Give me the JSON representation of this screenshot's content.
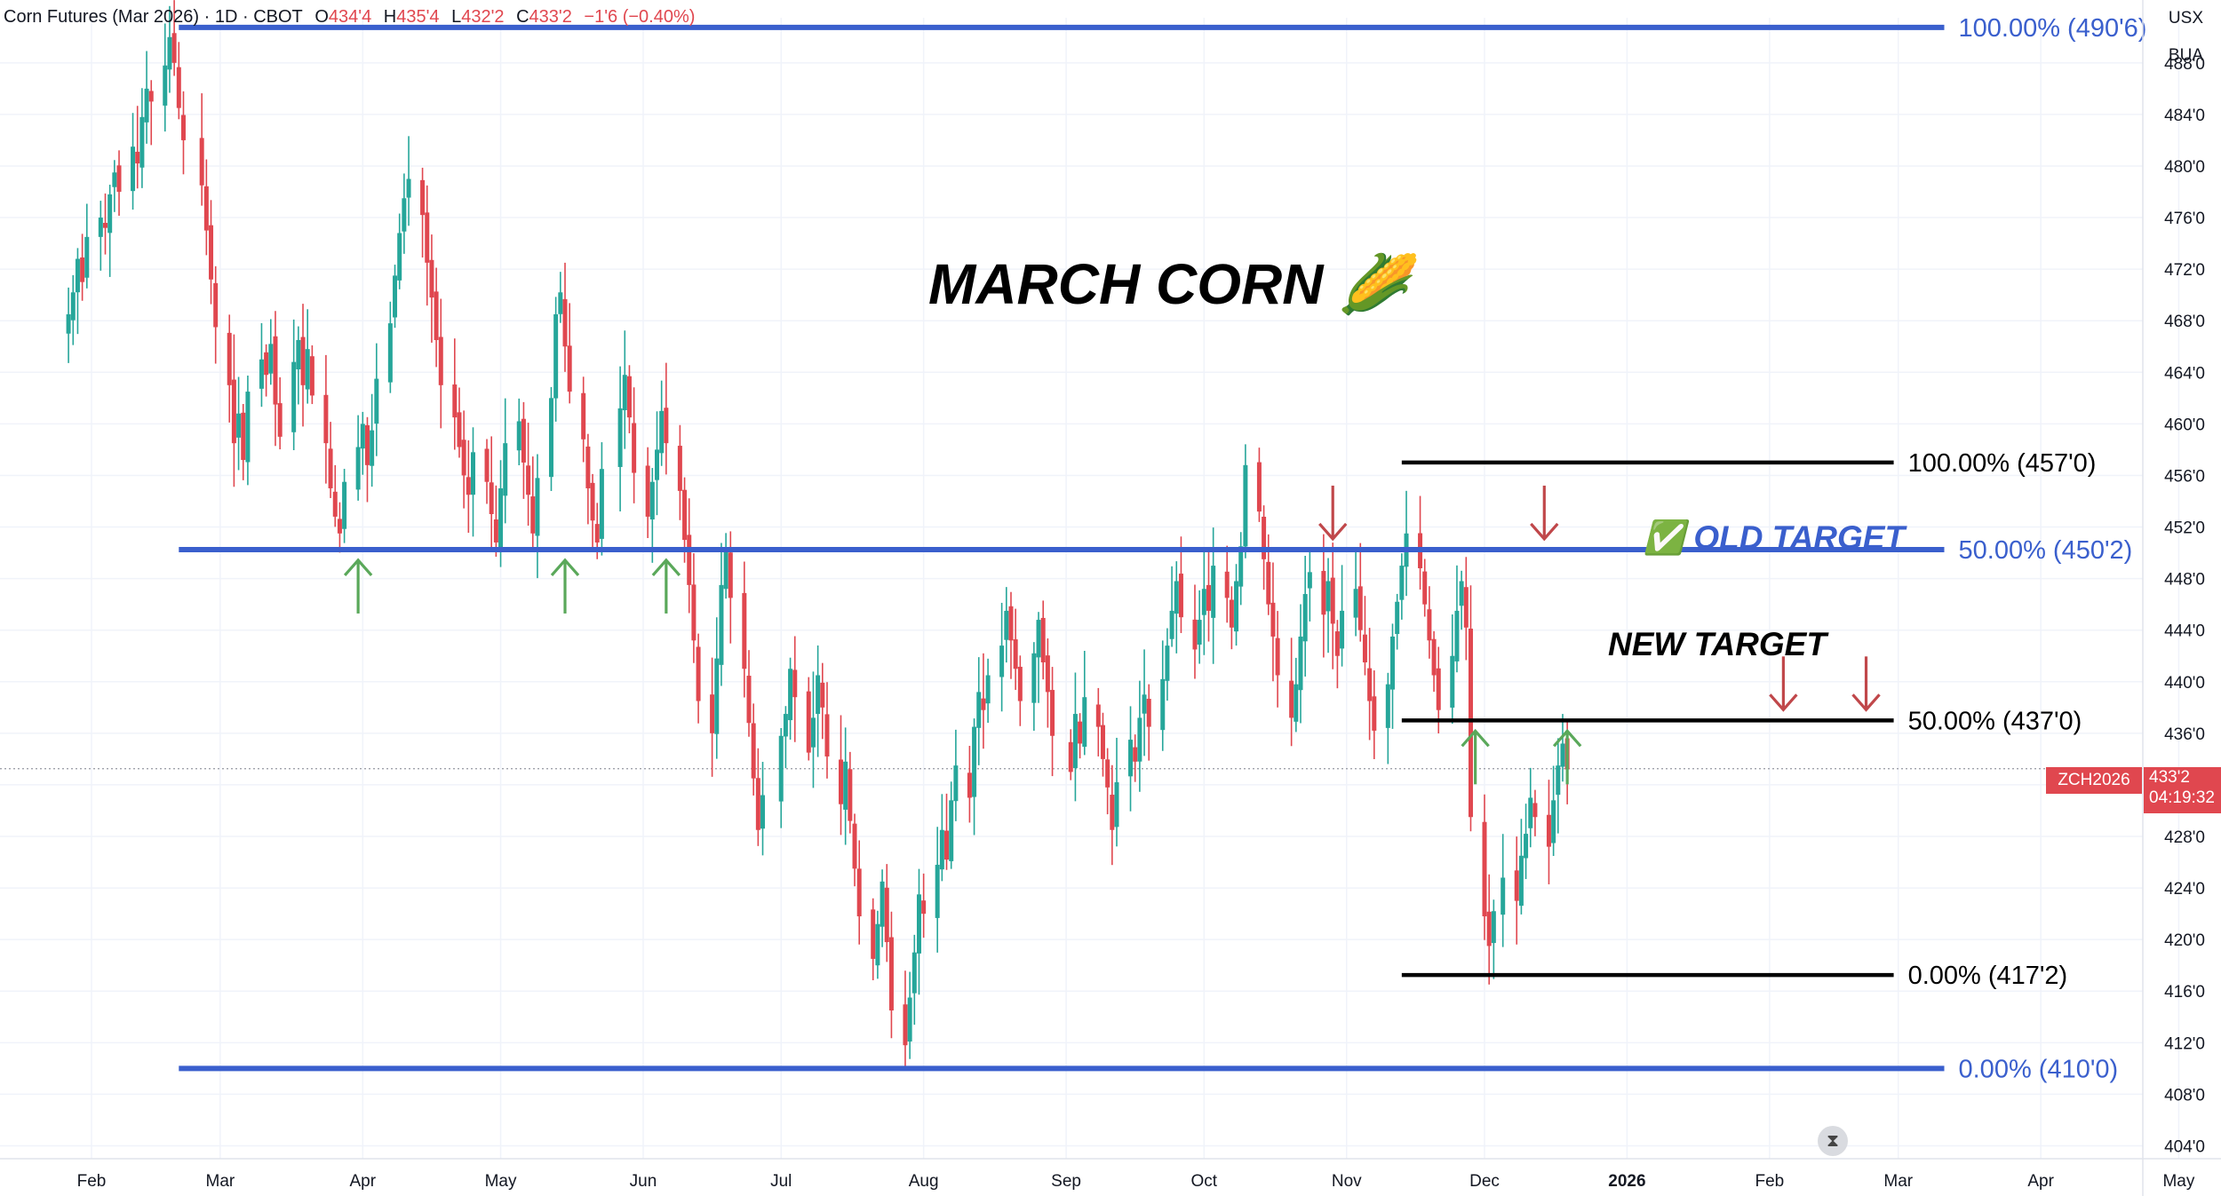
{
  "header": {
    "symbol": "Corn Futures (Mar 2026) · 1D · CBOT",
    "o_label": "O",
    "o_val": "434'4",
    "h_label": "H",
    "h_val": "435'4",
    "l_label": "L",
    "l_val": "432'2",
    "c_label": "C",
    "c_val": "433'2",
    "change": "−1'6 (−0.40%)"
  },
  "currency": "USX",
  "unit": "BUA",
  "last_price": {
    "symbol": "ZCH2026",
    "price": "433'2",
    "countdown": "04:19:32",
    "value": 433.25
  },
  "replay_icon": "hourglass-icon",
  "colors": {
    "up": "#26a69a",
    "down": "#e0474f",
    "blue_level": "#3a5fcd",
    "black_level": "#000000",
    "arrow_up": "#5aa85a",
    "arrow_down": "#c0474a"
  },
  "annotations": {
    "title": "MARCH CORN 🌽",
    "old_target": "✅ OLD TARGET",
    "new_target": "NEW TARGET"
  },
  "chart_data": {
    "type": "candlestick",
    "ylim": [
      403,
      491.5
    ],
    "y_ticks": [
      "488'0",
      "484'0",
      "480'0",
      "476'0",
      "472'0",
      "468'0",
      "464'0",
      "460'0",
      "456'0",
      "452'0",
      "448'0",
      "444'0",
      "440'0",
      "436'0",
      "432'0",
      "428'0",
      "424'0",
      "420'0",
      "416'0",
      "412'0",
      "408'0",
      "404'0"
    ],
    "x_ticks": [
      "Feb",
      "Mar",
      "Apr",
      "May",
      "Jun",
      "Jul",
      "Aug",
      "Sep",
      "Oct",
      "Nov",
      "Dec",
      "2026",
      "Feb",
      "Mar",
      "Apr",
      "May"
    ],
    "x_tick_dates": [
      "2025-02-01",
      "2025-03-01",
      "2025-04-01",
      "2025-05-01",
      "2025-06-01",
      "2025-07-01",
      "2025-08-01",
      "2025-09-01",
      "2025-10-01",
      "2025-11-01",
      "2025-12-01",
      "2026-01-01",
      "2026-02-01",
      "2026-03-01",
      "2026-04-01",
      "2026-05-01"
    ],
    "fib_levels": [
      {
        "label": "100.00% (490'6)",
        "price": 490.75,
        "color": "blue",
        "from": "2025-02-20",
        "to": "2026-03-11"
      },
      {
        "label": "50.00% (450'2)",
        "price": 450.25,
        "color": "blue",
        "from": "2025-02-20",
        "to": "2026-03-11"
      },
      {
        "label": "0.00% (410'0)",
        "price": 410.0,
        "color": "blue",
        "from": "2025-02-20",
        "to": "2026-03-11"
      },
      {
        "label": "100.00% (457'0)",
        "price": 457.0,
        "color": "black",
        "from": "2025-11-13",
        "to": "2026-02-28"
      },
      {
        "label": "50.00% (437'0)",
        "price": 437.0,
        "color": "black",
        "from": "2025-11-13",
        "to": "2026-02-28"
      },
      {
        "label": "0.00% (417'2)",
        "price": 417.25,
        "color": "black",
        "from": "2025-11-13",
        "to": "2026-02-28"
      }
    ],
    "up_arrows": [
      {
        "date": "2025-03-31",
        "price": 450.25
      },
      {
        "date": "2025-05-15",
        "price": 450.25
      },
      {
        "date": "2025-06-06",
        "price": 450.25
      },
      {
        "date": "2025-11-29",
        "price": 437.0
      },
      {
        "date": "2025-12-19",
        "price": 437.0
      }
    ],
    "down_arrows": [
      {
        "date": "2025-10-29",
        "price": 450.25
      },
      {
        "date": "2025-12-14",
        "price": 450.25
      },
      {
        "date": "2026-02-04",
        "price": 437.0
      },
      {
        "date": "2026-02-22",
        "price": 437.0
      }
    ],
    "candles_note": "Daily OHLC path sampled from the price chart (approximate)",
    "candles": {
      "start": "2025-01-27",
      "step_days": [
        1,
        1,
        1,
        1,
        3,
        1,
        1,
        1,
        1,
        3,
        1,
        1,
        1,
        1,
        3,
        1,
        1,
        1,
        1,
        4,
        1,
        1,
        1,
        3,
        1,
        1,
        1,
        1,
        3,
        1,
        1,
        1,
        1,
        3,
        1,
        1,
        1,
        1,
        3,
        1,
        1,
        1,
        1,
        3,
        1,
        1,
        1,
        1,
        3,
        1,
        1,
        1,
        1,
        3,
        1,
        1,
        1,
        1,
        3,
        1,
        1,
        1,
        1,
        3,
        1,
        1,
        1,
        1,
        3,
        1,
        1,
        1,
        1,
        3,
        1,
        1,
        1,
        1,
        3,
        1,
        1,
        1,
        1,
        4,
        1,
        1,
        1,
        3,
        1,
        1,
        1,
        1,
        3,
        1,
        1,
        1,
        1,
        3,
        1,
        1,
        1,
        1,
        3,
        1,
        1,
        1,
        1,
        4,
        1,
        1,
        1,
        3,
        1,
        1,
        1,
        1,
        3,
        1,
        1,
        1,
        1,
        3,
        1,
        1,
        1,
        1,
        3,
        1,
        1,
        1,
        1,
        3,
        1,
        1,
        1,
        1,
        3,
        1,
        1,
        1,
        1,
        3,
        1,
        1,
        1,
        1,
        3,
        1,
        1,
        1,
        1,
        4,
        1,
        1,
        1,
        3,
        1,
        1,
        1,
        1,
        3,
        1,
        1,
        1,
        1,
        3,
        1,
        1,
        1,
        1,
        3,
        1,
        1,
        1,
        1,
        3,
        1,
        1,
        1,
        1,
        3,
        1,
        1,
        1,
        1,
        3,
        1,
        1,
        1,
        1,
        3,
        1,
        1,
        1,
        1,
        3,
        1,
        1,
        1,
        1,
        3,
        1,
        1,
        1,
        1,
        3,
        1,
        1,
        1,
        1,
        3,
        1,
        1,
        1,
        1,
        3,
        1,
        1,
        2,
        3,
        1,
        1,
        1,
        1,
        3,
        1,
        1,
        1,
        1,
        3,
        1,
        1,
        1,
        1,
        3,
        1,
        1,
        1,
        1,
        3,
        1,
        1,
        1,
        1,
        3,
        1,
        1,
        1,
        1,
        4,
        1,
        1,
        1,
        3,
        1,
        1,
        1,
        1,
        3,
        1,
        1,
        1,
        1,
        3
      ],
      "close": [
        468.5,
        470.2,
        472.8,
        471.0,
        474.5,
        476.0,
        475.2,
        477.8,
        479.5,
        478.0,
        481.5,
        480.2,
        483.8,
        486.0,
        485.0,
        487.8,
        490.0,
        488.0,
        484.5,
        482.0,
        478.5,
        475.0,
        471.2,
        467.5,
        463.0,
        458.5,
        460.8,
        457.2,
        462.5,
        465.0,
        463.8,
        466.2,
        461.5,
        459.0,
        464.8,
        466.5,
        463.0,
        465.8,
        462.2,
        458.5,
        455.0,
        452.8,
        451.5,
        455.5,
        458.2,
        460.0,
        456.8,
        459.5,
        463.5,
        467.8,
        471.5,
        474.8,
        477.5,
        479.0,
        476.2,
        472.5,
        469.8,
        466.5,
        463.0,
        460.5,
        458.2,
        456.0,
        454.5,
        457.8,
        455.5,
        453.0,
        450.8,
        455.0,
        458.5,
        460.2,
        457.0,
        454.5,
        451.5,
        455.8,
        462.0,
        468.5,
        470.2,
        466.0,
        462.5,
        458.8,
        455.0,
        452.5,
        450.8,
        456.5,
        461.2,
        463.8,
        460.5,
        456.2,
        452.8,
        455.5,
        458.0,
        461.0,
        458.5,
        454.8,
        451.0,
        447.5,
        443.2,
        438.5,
        436.0,
        441.8,
        447.5,
        450.2,
        446.5,
        441.0,
        436.8,
        432.5,
        428.5,
        431.2,
        435.8,
        437.5,
        441.0,
        438.8,
        434.5,
        437.2,
        440.5,
        438.0,
        434.2,
        430.5,
        433.8,
        429.2,
        425.5,
        421.8,
        418.5,
        421.2,
        424.5,
        419.8,
        414.5,
        411.8,
        415.5,
        419.0,
        423.5,
        422.0,
        425.8,
        428.5,
        426.2,
        430.8,
        433.5,
        431.0,
        436.5,
        439.2,
        437.8,
        440.5,
        442.8,
        445.5,
        443.2,
        441.0,
        438.5,
        442.2,
        444.8,
        441.5,
        439.2,
        435.8,
        433.0,
        437.5,
        435.2,
        438.8,
        436.5,
        434.0,
        431.8,
        428.5,
        432.2,
        435.5,
        433.8,
        437.2,
        439.0,
        436.5,
        440.2,
        442.8,
        445.5,
        447.8,
        445.0,
        442.5,
        444.8,
        447.2,
        445.5,
        449.0,
        446.5,
        444.2,
        447.8,
        450.5,
        456.8,
        453.2,
        449.5,
        446.0,
        443.5,
        440.5,
        437.2,
        439.8,
        443.5,
        446.8,
        448.5,
        445.2,
        447.8,
        444.5,
        442.0,
        445.5,
        447.2,
        444.0,
        441.5,
        438.5,
        436.2,
        439.8,
        443.5,
        446.2,
        449.0,
        451.5,
        448.8,
        446.0,
        443.2,
        440.5,
        437.8,
        442.0,
        445.5,
        447.8,
        444.2,
        429.5,
        421.8,
        419.5,
        422.2,
        424.8,
        423.0,
        426.5,
        428.2,
        431.0,
        429.5,
        427.2,
        430.8,
        433.5,
        435.2,
        433.2
      ],
      "candle_dates_note": "Dates derived from start + cumulative step_days"
    }
  }
}
